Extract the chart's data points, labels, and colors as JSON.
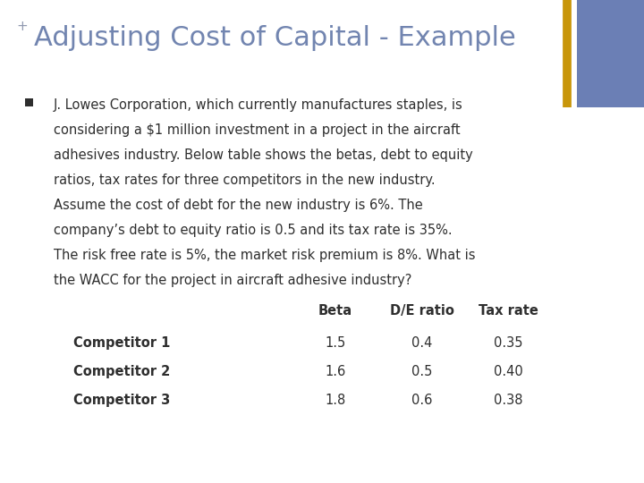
{
  "title": "Adjusting Cost of Capital - Example",
  "plus_sign": "+",
  "title_color": "#7285B0",
  "plus_color": "#9099B0",
  "background_color": "#FFFFFF",
  "bullet_color": "#2E2E2E",
  "text_color": "#2E2E2E",
  "accent_bar_color": "#6B7FB5",
  "accent_line_color": "#C8960A",
  "body_lines": [
    "J. Lowes Corporation, which currently manufactures staples, is",
    "considering a $1 million investment in a project in the aircraft",
    "adhesives industry. Below table shows the betas, debt to equity",
    "ratios, tax rates for three competitors in the new industry.",
    "Assume the cost of debt for the new industry is 6%. The",
    "company’s debt to equity ratio is 0.5 and its tax rate is 35%.",
    "The risk free rate is 5%, the market risk premium is 8%. What is",
    "the WACC for the project in aircraft adhesive industry?"
  ],
  "table_headers": [
    "",
    "Beta",
    "D/E ratio",
    "Tax rate"
  ],
  "table_rows": [
    [
      "Competitor 1",
      "1.5",
      "0.4",
      "0.35"
    ],
    [
      "Competitor 2",
      "1.6",
      "0.5",
      "0.40"
    ],
    [
      "Competitor 3",
      "1.8",
      "0.6",
      "0.38"
    ]
  ],
  "title_fontsize": 22,
  "plus_fontsize": 11,
  "body_fontsize": 10.5,
  "table_fontsize": 10.5
}
